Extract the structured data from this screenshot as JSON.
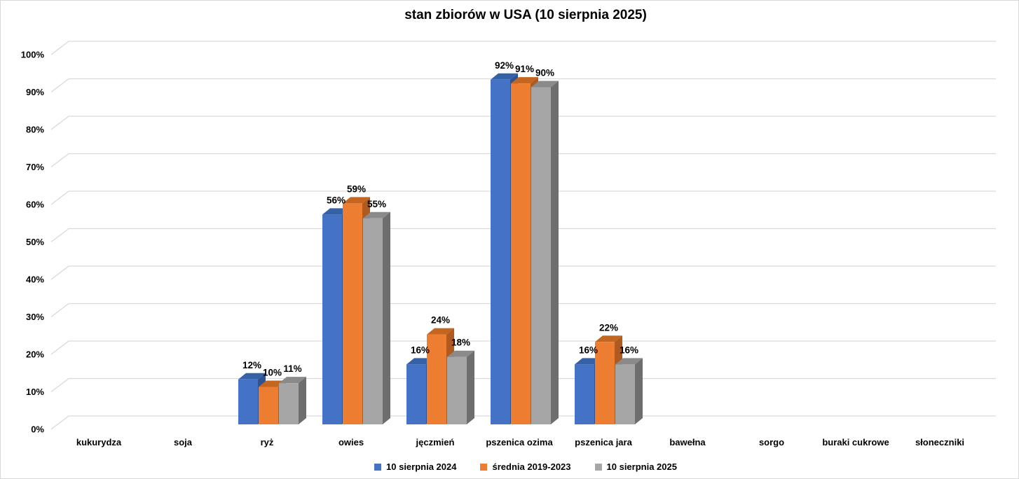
{
  "chart_data": {
    "type": "bar",
    "style": "3d-clustered-column",
    "title": "stan zbiorów w USA (10 sierpnia 2025)",
    "categories": [
      "kukurydza",
      "soja",
      "ryż",
      "owies",
      "jęczmień",
      "pszenica ozima",
      "pszenica jara",
      "bawełna",
      "sorgo",
      "buraki cukrowe",
      "słoneczniki"
    ],
    "series": [
      {
        "name": "10 sierpnia 2024",
        "color": "#4472C4",
        "color_top": "#3561A7",
        "color_side": "#2E5390",
        "values": [
          null,
          null,
          12,
          56,
          16,
          92,
          16,
          null,
          null,
          null,
          null
        ]
      },
      {
        "name": "średnia 2019-2023",
        "color": "#ED7D31",
        "color_top": "#C4661F",
        "color_side": "#AE5A21",
        "values": [
          null,
          null,
          10,
          59,
          24,
          91,
          22,
          null,
          null,
          null,
          null
        ]
      },
      {
        "name": "10 sierpnia 2025",
        "color": "#A6A6A6",
        "color_top": "#8A8A8A",
        "color_side": "#6E6E6E",
        "values": [
          null,
          null,
          11,
          55,
          18,
          90,
          16,
          null,
          null,
          null,
          null
        ]
      }
    ],
    "data_label_suffix": "%",
    "y_axis": {
      "min": 0,
      "max": 100,
      "step": 10,
      "tick_labels": [
        "0%",
        "10%",
        "20%",
        "30%",
        "40%",
        "50%",
        "60%",
        "70%",
        "80%",
        "90%",
        "100%"
      ]
    },
    "grid": true,
    "legend_position": "bottom",
    "gridline_color": "#D9D9D9",
    "background": "#FFFFFF",
    "text_color": "#000000"
  }
}
